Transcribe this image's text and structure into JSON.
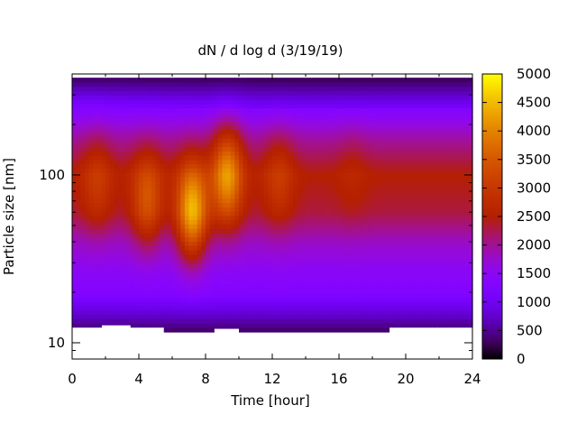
{
  "chart_data": {
    "type": "heatmap",
    "title": "dN / d log d (3/19/19)",
    "xlabel": "Time [hour]",
    "ylabel": "Particle size [nm]",
    "xlim": [
      0,
      24
    ],
    "x_ticks": [
      0,
      4,
      8,
      12,
      16,
      20,
      24
    ],
    "x_tick_labels": [
      "0",
      "4",
      "8",
      "12",
      "16",
      "20",
      "24"
    ],
    "y_scale": "log",
    "y_ticks": [
      10,
      100
    ],
    "y_tick_labels": [
      "10",
      "100"
    ],
    "colorbar": {
      "min": 0,
      "max": 5000,
      "ticks": [
        0,
        500,
        1000,
        1500,
        2000,
        2500,
        3000,
        3500,
        4000,
        4500,
        5000
      ],
      "tick_labels": [
        "0",
        "500",
        "1000",
        "1500",
        "2000",
        "2500",
        "3000",
        "3500",
        "4000",
        "4500",
        "5000"
      ],
      "palette": "gnuplot (black-purple-red-orange-yellow)",
      "colors": [
        "#000000",
        "#4a00a0",
        "#b000ff",
        "#d02060",
        "#e05000",
        "#f0a000",
        "#ffff00"
      ]
    },
    "size_range_nm": [
      11,
      380
    ],
    "background_level": {
      "size_nm": [
        11,
        16,
        20,
        28,
        40,
        60,
        100,
        160,
        250,
        320,
        380
      ],
      "dNdlogd": [
        200,
        900,
        1300,
        1500,
        1800,
        2300,
        2500,
        2000,
        1300,
        700,
        300
      ]
    },
    "modes": [
      {
        "time_h": 1.5,
        "size_nm": 90,
        "peak": 3100
      },
      {
        "time_h": 4.5,
        "size_nm": 70,
        "peak": 3600
      },
      {
        "time_h": 7.2,
        "size_nm": 60,
        "peak": 4700
      },
      {
        "time_h": 9.3,
        "size_nm": 100,
        "peak": 4300
      },
      {
        "time_h": 12.4,
        "size_nm": 95,
        "peak": 3100
      },
      {
        "time_h": 16.8,
        "size_nm": 105,
        "peak": 2700
      },
      {
        "time_h": 20.8,
        "size_nm": 110,
        "peak": 2500
      }
    ],
    "lower_cutoff_nm": [
      {
        "from_h": 0,
        "to_h": 1.7,
        "size_nm": 12.4
      },
      {
        "from_h": 1.7,
        "to_h": 3.6,
        "size_nm": 12.8
      },
      {
        "from_h": 3.6,
        "to_h": 5.4,
        "size_nm": 12.4
      },
      {
        "from_h": 5.4,
        "to_h": 8.5,
        "size_nm": 11.6
      },
      {
        "from_h": 8.5,
        "to_h": 9.9,
        "size_nm": 12.2
      },
      {
        "from_h": 9.9,
        "to_h": 19.1,
        "size_nm": 11.6
      },
      {
        "from_h": 19.1,
        "to_h": 24,
        "size_nm": 12.4
      }
    ]
  }
}
